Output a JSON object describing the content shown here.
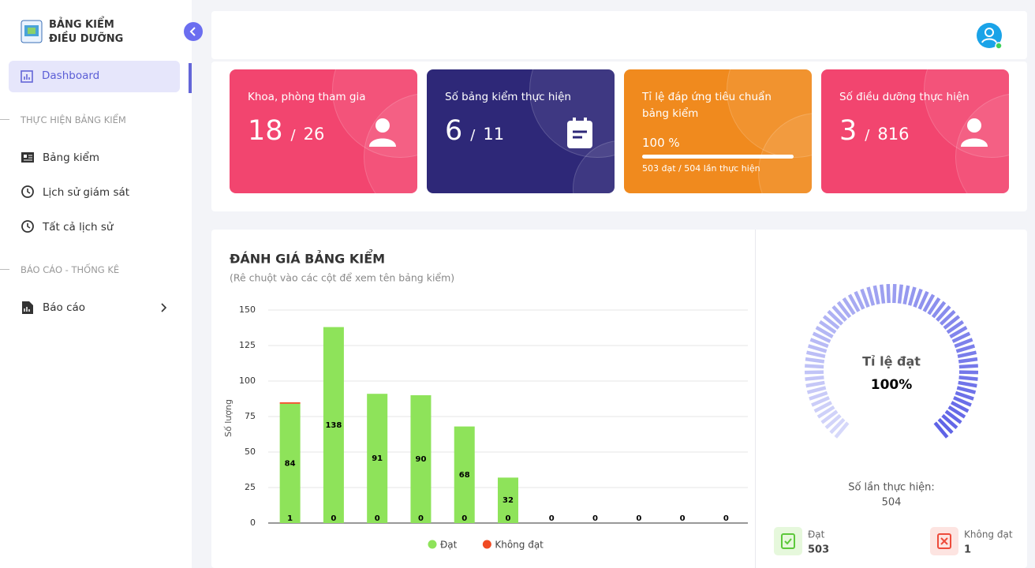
{
  "sidebar": {
    "logo_line1": "BẢNG KIỂM",
    "logo_line2": "ĐIỀU DƯỠNG",
    "dashboard": "Dashboard",
    "section1": "THỰC HIỆN BẢNG KIỂM",
    "items1": [
      "Bảng kiểm",
      "Lịch sử giám sát",
      "Tất cả lịch sử"
    ],
    "section2": "BÁO CÁO - THỐNG KÊ",
    "items2": [
      "Báo cáo"
    ]
  },
  "stats": {
    "separator": "/",
    "cards": [
      {
        "title": "Khoa, phòng tham gia",
        "value": 18,
        "total": 26
      },
      {
        "title": "Số bảng kiểm thực hiện",
        "value": 6,
        "total": 11
      },
      {
        "title": "Tỉ lệ đáp ứng tiêu chuẩn bảng kiểm",
        "progress": {
          "value": 100,
          "label": "100 %"
        },
        "note": "503 đạt / 504 lần thực hiện"
      },
      {
        "title": "Số điều dưỡng thực hiện",
        "value": 3,
        "total": 816
      }
    ]
  },
  "chart_data": {
    "type": "bar",
    "stacked": true,
    "title": "ĐÁNH GIÁ BẢNG KIỂM",
    "subtitle": "(Rê chuột vào các cột để xem tên bảng kiểm)",
    "y_label": "Số lượng",
    "categories": [
      null,
      null,
      null,
      null,
      null,
      null,
      null,
      null,
      null,
      null,
      null
    ],
    "series": [
      {
        "name": "Đạt",
        "color": "#8ee35a",
        "values": [
          84,
          138,
          91,
          90,
          68,
          32,
          0,
          0,
          0,
          0,
          0
        ]
      },
      {
        "name": "Không đạt",
        "color": "#f04a23",
        "values": [
          1,
          0,
          0,
          0,
          0,
          0,
          0,
          0,
          0,
          0,
          0
        ]
      }
    ],
    "ylim": [
      0,
      150
    ],
    "yticks": [
      0,
      25,
      50,
      75,
      100,
      125,
      150
    ],
    "grid": true,
    "legend": "bottom"
  },
  "gauge": {
    "label": "Tỉ lệ đạt",
    "value": 100,
    "value_label": "100%",
    "count_label": "Số lần thực hiện:",
    "count": 504
  },
  "summary": [
    {
      "label": "Đạt",
      "value": 503
    },
    {
      "label": "Không đạt",
      "value": 1
    }
  ]
}
